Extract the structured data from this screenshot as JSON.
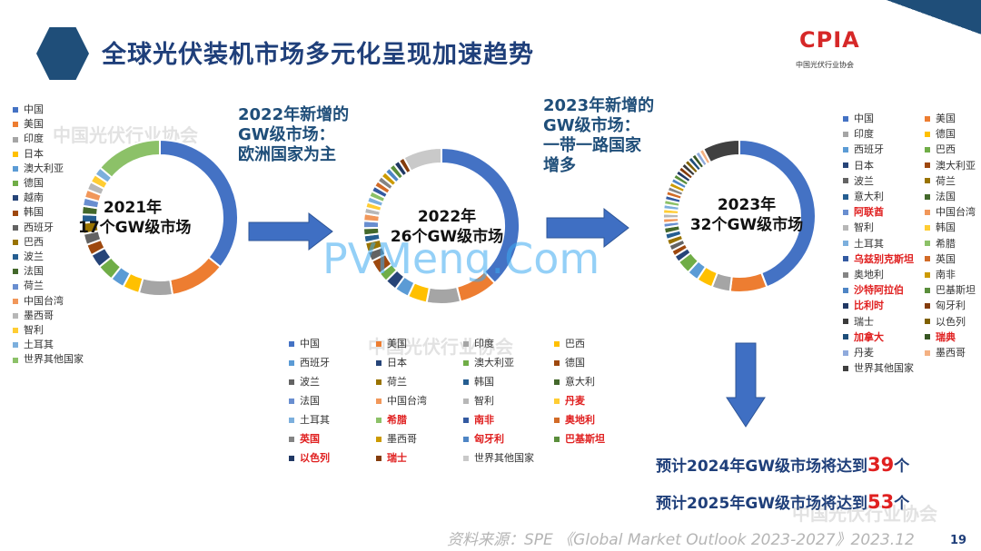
{
  "header": {
    "title": "全球光伏装机市场多元化呈现加速趋势",
    "logo_text": "CPIA",
    "logo_sub": "中国光伏行业协会"
  },
  "watermarks": {
    "org_text": "中国光伏行业协会",
    "site_text": "PVMeng.Com"
  },
  "callouts": {
    "c2022": [
      "2022年新增的",
      "GW级市场：",
      "欧洲国家为主"
    ],
    "c2023": [
      "2023年新增的",
      "GW级市场：",
      "一带一路国家",
      "增多"
    ]
  },
  "chart_data": [
    {
      "type": "pie",
      "title": "2021年 17个GW级市场",
      "center_lines": [
        "2021年",
        "17个GW级市场"
      ],
      "donut": true,
      "slices": [
        {
          "label": "中国",
          "value": 31,
          "color": "#4472c4"
        },
        {
          "label": "美国",
          "value": 10,
          "color": "#ed7d31"
        },
        {
          "label": "印度",
          "value": 6,
          "color": "#a5a5a5"
        },
        {
          "label": "日本",
          "value": 3,
          "color": "#ffc000"
        },
        {
          "label": "澳大利亚",
          "value": 2.5,
          "color": "#5b9bd5"
        },
        {
          "label": "德国",
          "value": 3,
          "color": "#70ad47"
        },
        {
          "label": "越南",
          "value": 2.5,
          "color": "#264478"
        },
        {
          "label": "韩国",
          "value": 2,
          "color": "#9e480e"
        },
        {
          "label": "西班牙",
          "value": 2,
          "color": "#636363"
        },
        {
          "label": "巴西",
          "value": 2,
          "color": "#997300"
        },
        {
          "label": "波兰",
          "value": 1.5,
          "color": "#255e91"
        },
        {
          "label": "法国",
          "value": 1.5,
          "color": "#43682b"
        },
        {
          "label": "荷兰",
          "value": 1.5,
          "color": "#698ed0"
        },
        {
          "label": "中国台湾",
          "value": 1.5,
          "color": "#f1975a"
        },
        {
          "label": "墨西哥",
          "value": 1.5,
          "color": "#b7b7b7"
        },
        {
          "label": "智利",
          "value": 1.5,
          "color": "#ffcd33"
        },
        {
          "label": "土耳其",
          "value": 1.5,
          "color": "#7cafdd"
        },
        {
          "label": "世界其他国家",
          "value": 12,
          "color": "#8cc168"
        }
      ]
    },
    {
      "type": "pie",
      "title": "2022年 26个GW级市场",
      "center_lines": [
        "2022年",
        "26个GW级市场"
      ],
      "donut": true,
      "slices": [
        {
          "label": "中国",
          "value": 38,
          "color": "#4472c4"
        },
        {
          "label": "美国",
          "value": 8,
          "color": "#ed7d31"
        },
        {
          "label": "印度",
          "value": 7,
          "color": "#a5a5a5"
        },
        {
          "label": "巴西",
          "value": 4,
          "color": "#ffc000"
        },
        {
          "label": "西班牙",
          "value": 3,
          "color": "#5b9bd5"
        },
        {
          "label": "日本",
          "value": 2.5,
          "color": "#264478"
        },
        {
          "label": "澳大利亚",
          "value": 2,
          "color": "#70ad47"
        },
        {
          "label": "德国",
          "value": 3,
          "color": "#9e480e"
        },
        {
          "label": "波兰",
          "value": 2,
          "color": "#636363"
        },
        {
          "label": "荷兰",
          "value": 2,
          "color": "#997300"
        },
        {
          "label": "韩国",
          "value": 1.5,
          "color": "#255e91"
        },
        {
          "label": "意大利",
          "value": 1.5,
          "color": "#43682b"
        },
        {
          "label": "法国",
          "value": 1.5,
          "color": "#698ed0"
        },
        {
          "label": "中国台湾",
          "value": 1.5,
          "color": "#f1975a"
        },
        {
          "label": "智利",
          "value": 1.2,
          "color": "#b7b7b7"
        },
        {
          "label": "丹麦",
          "value": 1.2,
          "color": "#ffcd33"
        },
        {
          "label": "土耳其",
          "value": 1.2,
          "color": "#7cafdd"
        },
        {
          "label": "希腊",
          "value": 1.2,
          "color": "#8cc168"
        },
        {
          "label": "南非",
          "value": 1.2,
          "color": "#335aa1"
        },
        {
          "label": "奥地利",
          "value": 1.2,
          "color": "#d26b27"
        },
        {
          "label": "英国",
          "value": 1.2,
          "color": "#848484"
        },
        {
          "label": "墨西哥",
          "value": 1.2,
          "color": "#cc9a00"
        },
        {
          "label": "匈牙利",
          "value": 1.2,
          "color": "#4e85c5"
        },
        {
          "label": "巴基斯坦",
          "value": 1.2,
          "color": "#5a8e3b"
        },
        {
          "label": "以色列",
          "value": 1.2,
          "color": "#203864"
        },
        {
          "label": "瑞士",
          "value": 1.2,
          "color": "#843c0c"
        },
        {
          "label": "世界其他国家",
          "value": 8,
          "color": "#c9c9c9"
        }
      ]
    },
    {
      "type": "pie",
      "title": "2023年 32个GW级市场",
      "center_lines": [
        "2023年",
        "32个GW级市场"
      ],
      "donut": true,
      "slices": [
        {
          "label": "中国",
          "value": 45,
          "color": "#4472c4"
        },
        {
          "label": "美国",
          "value": 8,
          "color": "#ed7d31"
        },
        {
          "label": "印度",
          "value": 4,
          "color": "#a5a5a5"
        },
        {
          "label": "德国",
          "value": 3.5,
          "color": "#ffc000"
        },
        {
          "label": "西班牙",
          "value": 2.5,
          "color": "#5b9bd5"
        },
        {
          "label": "巴西",
          "value": 3,
          "color": "#70ad47"
        },
        {
          "label": "日本",
          "value": 1.5,
          "color": "#264478"
        },
        {
          "label": "澳大利亚",
          "value": 1.3,
          "color": "#9e480e"
        },
        {
          "label": "波兰",
          "value": 1.3,
          "color": "#636363"
        },
        {
          "label": "荷兰",
          "value": 1.3,
          "color": "#997300"
        },
        {
          "label": "意大利",
          "value": 1.3,
          "color": "#255e91"
        },
        {
          "label": "法国",
          "value": 1.3,
          "color": "#43682b"
        },
        {
          "label": "阿联酋",
          "value": 1,
          "color": "#698ed0"
        },
        {
          "label": "中国台湾",
          "value": 1,
          "color": "#f1975a"
        },
        {
          "label": "智利",
          "value": 1,
          "color": "#b7b7b7"
        },
        {
          "label": "韩国",
          "value": 1,
          "color": "#ffcd33"
        },
        {
          "label": "土耳其",
          "value": 1,
          "color": "#7cafdd"
        },
        {
          "label": "希腊",
          "value": 1,
          "color": "#8cc168"
        },
        {
          "label": "乌兹别克斯坦",
          "value": 1,
          "color": "#335aa1"
        },
        {
          "label": "英国",
          "value": 1,
          "color": "#d26b27"
        },
        {
          "label": "奥地利",
          "value": 1,
          "color": "#848484"
        },
        {
          "label": "南非",
          "value": 1,
          "color": "#cc9a00"
        },
        {
          "label": "沙特阿拉伯",
          "value": 1,
          "color": "#4e85c5"
        },
        {
          "label": "巴基斯坦",
          "value": 1,
          "color": "#5a8e3b"
        },
        {
          "label": "比利时",
          "value": 1,
          "color": "#203864"
        },
        {
          "label": "匈牙利",
          "value": 1,
          "color": "#843c0c"
        },
        {
          "label": "瑞士",
          "value": 1,
          "color": "#3b3b3b"
        },
        {
          "label": "以色列",
          "value": 1,
          "color": "#7f6000"
        },
        {
          "label": "加拿大",
          "value": 1,
          "color": "#1e4e79"
        },
        {
          "label": "瑞典",
          "value": 1,
          "color": "#375623"
        },
        {
          "label": "丹麦",
          "value": 1,
          "color": "#8faadc"
        },
        {
          "label": "墨西哥",
          "value": 1,
          "color": "#f4b183"
        },
        {
          "label": "世界其他国家",
          "value": 8,
          "color": "#404040"
        }
      ]
    }
  ],
  "legends": {
    "l2021": [
      {
        "label": "中国",
        "color": "#4472c4",
        "red": false
      },
      {
        "label": "美国",
        "color": "#ed7d31",
        "red": false
      },
      {
        "label": "印度",
        "color": "#a5a5a5",
        "red": false
      },
      {
        "label": "日本",
        "color": "#ffc000",
        "red": false
      },
      {
        "label": "澳大利亚",
        "color": "#5b9bd5",
        "red": false
      },
      {
        "label": "德国",
        "color": "#70ad47",
        "red": false
      },
      {
        "label": "越南",
        "color": "#264478",
        "red": false
      },
      {
        "label": "韩国",
        "color": "#9e480e",
        "red": false
      },
      {
        "label": "西班牙",
        "color": "#636363",
        "red": false
      },
      {
        "label": "巴西",
        "color": "#997300",
        "red": false
      },
      {
        "label": "波兰",
        "color": "#255e91",
        "red": false
      },
      {
        "label": "法国",
        "color": "#43682b",
        "red": false
      },
      {
        "label": "荷兰",
        "color": "#698ed0",
        "red": false
      },
      {
        "label": "中国台湾",
        "color": "#f1975a",
        "red": false
      },
      {
        "label": "墨西哥",
        "color": "#b7b7b7",
        "red": false
      },
      {
        "label": "智利",
        "color": "#ffcd33",
        "red": false
      },
      {
        "label": "土耳其",
        "color": "#7cafdd",
        "red": false
      },
      {
        "label": "世界其他国家",
        "color": "#8cc168",
        "red": false
      }
    ],
    "l2022": [
      [
        {
          "label": "中国",
          "color": "#4472c4",
          "red": false
        },
        {
          "label": "西班牙",
          "color": "#5b9bd5",
          "red": false
        },
        {
          "label": "波兰",
          "color": "#636363",
          "red": false
        },
        {
          "label": "法国",
          "color": "#698ed0",
          "red": false
        },
        {
          "label": "土耳其",
          "color": "#7cafdd",
          "red": false
        },
        {
          "label": "英国",
          "color": "#848484",
          "red": true
        },
        {
          "label": "以色列",
          "color": "#203864",
          "red": true
        }
      ],
      [
        {
          "label": "美国",
          "color": "#ed7d31",
          "red": false
        },
        {
          "label": "日本",
          "color": "#264478",
          "red": false
        },
        {
          "label": "荷兰",
          "color": "#997300",
          "red": false
        },
        {
          "label": "中国台湾",
          "color": "#f1975a",
          "red": false
        },
        {
          "label": "希腊",
          "color": "#8cc168",
          "red": true
        },
        {
          "label": "墨西哥",
          "color": "#cc9a00",
          "red": false
        },
        {
          "label": "瑞士",
          "color": "#843c0c",
          "red": true
        }
      ],
      [
        {
          "label": "印度",
          "color": "#a5a5a5",
          "red": false
        },
        {
          "label": "澳大利亚",
          "color": "#70ad47",
          "red": false
        },
        {
          "label": "韩国",
          "color": "#255e91",
          "red": false
        },
        {
          "label": "智利",
          "color": "#b7b7b7",
          "red": false
        },
        {
          "label": "南非",
          "color": "#335aa1",
          "red": true
        },
        {
          "label": "匈牙利",
          "color": "#4e85c5",
          "red": true
        },
        {
          "label": "世界其他国家",
          "color": "#c9c9c9",
          "red": false
        }
      ],
      [
        {
          "label": "巴西",
          "color": "#ffc000",
          "red": false
        },
        {
          "label": "德国",
          "color": "#9e480e",
          "red": false
        },
        {
          "label": "意大利",
          "color": "#43682b",
          "red": false
        },
        {
          "label": "丹麦",
          "color": "#ffcd33",
          "red": true
        },
        {
          "label": "奥地利",
          "color": "#d26b27",
          "red": true
        },
        {
          "label": "巴基斯坦",
          "color": "#5a8e3b",
          "red": true
        }
      ]
    ],
    "l2023": [
      [
        {
          "label": "中国",
          "color": "#4472c4",
          "red": false
        },
        {
          "label": "印度",
          "color": "#a5a5a5",
          "red": false
        },
        {
          "label": "西班牙",
          "color": "#5b9bd5",
          "red": false
        },
        {
          "label": "日本",
          "color": "#264478",
          "red": false
        },
        {
          "label": "波兰",
          "color": "#636363",
          "red": false
        },
        {
          "label": "意大利",
          "color": "#255e91",
          "red": false
        },
        {
          "label": "阿联酋",
          "color": "#698ed0",
          "red": true
        },
        {
          "label": "智利",
          "color": "#b7b7b7",
          "red": false
        },
        {
          "label": "土耳其",
          "color": "#7cafdd",
          "red": false
        },
        {
          "label": "乌兹别克斯坦",
          "color": "#335aa1",
          "red": true
        },
        {
          "label": "奥地利",
          "color": "#848484",
          "red": false
        },
        {
          "label": "沙特阿拉伯",
          "color": "#4e85c5",
          "red": true
        },
        {
          "label": "比利时",
          "color": "#203864",
          "red": true
        },
        {
          "label": "瑞士",
          "color": "#3b3b3b",
          "red": false
        },
        {
          "label": "加拿大",
          "color": "#1e4e79",
          "red": true
        },
        {
          "label": "丹麦",
          "color": "#8faadc",
          "red": false
        },
        {
          "label": "世界其他国家",
          "color": "#404040",
          "red": false
        }
      ],
      [
        {
          "label": "美国",
          "color": "#ed7d31",
          "red": false
        },
        {
          "label": "德国",
          "color": "#ffc000",
          "red": false
        },
        {
          "label": "巴西",
          "color": "#70ad47",
          "red": false
        },
        {
          "label": "澳大利亚",
          "color": "#9e480e",
          "red": false
        },
        {
          "label": "荷兰",
          "color": "#997300",
          "red": false
        },
        {
          "label": "法国",
          "color": "#43682b",
          "red": false
        },
        {
          "label": "中国台湾",
          "color": "#f1975a",
          "red": false
        },
        {
          "label": "韩国",
          "color": "#ffcd33",
          "red": false
        },
        {
          "label": "希腊",
          "color": "#8cc168",
          "red": false
        },
        {
          "label": "英国",
          "color": "#d26b27",
          "red": false
        },
        {
          "label": "南非",
          "color": "#cc9a00",
          "red": false
        },
        {
          "label": "巴基斯坦",
          "color": "#5a8e3b",
          "red": false
        },
        {
          "label": "匈牙利",
          "color": "#843c0c",
          "red": false
        },
        {
          "label": "以色列",
          "color": "#7f6000",
          "red": false
        },
        {
          "label": "瑞典",
          "color": "#375623",
          "red": true
        },
        {
          "label": "墨西哥",
          "color": "#f4b183",
          "red": false
        }
      ]
    ]
  },
  "forecast": {
    "line1_prefix": "预计2024年GW级市场将达到",
    "line1_value": "39",
    "line1_suffix": "个",
    "line2_prefix": "预计2025年GW级市场将达到",
    "line2_value": "53",
    "line2_suffix": "个"
  },
  "footer": {
    "source": "资料来源：SPE 《Global Market Outlook 2023-2027》2023.12",
    "page_number": "19"
  },
  "colors": {
    "title": "#1f3f7a",
    "arrow": "#3f6fc3",
    "highlight_red": "#e02020"
  }
}
